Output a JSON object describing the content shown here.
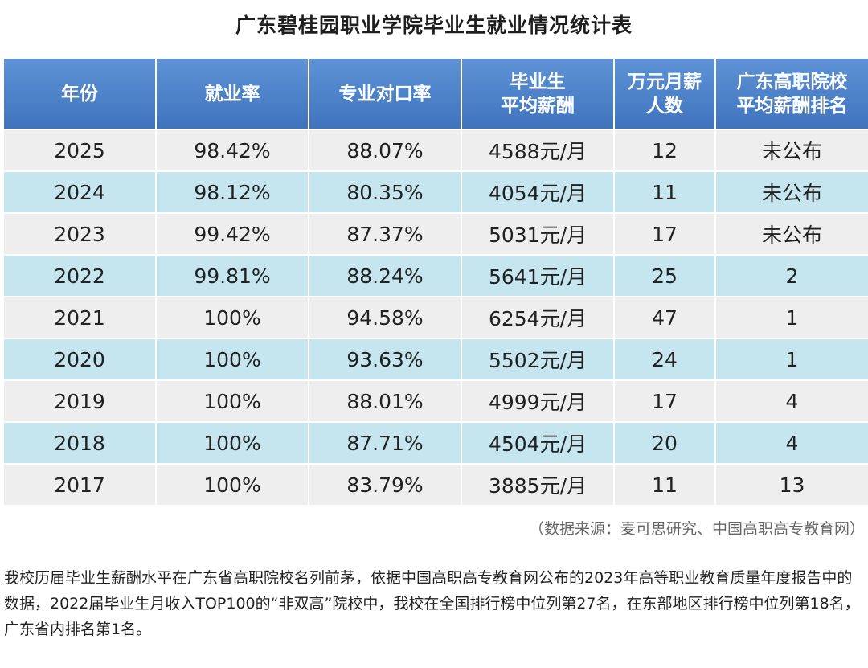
{
  "title": "广东碧桂园职业学院毕业生就业情况统计表",
  "table": {
    "headers": [
      [
        "年份"
      ],
      [
        "就业率"
      ],
      [
        "专业对口率"
      ],
      [
        "毕业生",
        "平均薪酬"
      ],
      [
        "万元月薪",
        "人数"
      ],
      [
        "广东高职院校",
        "平均薪酬排名"
      ]
    ],
    "rows": [
      [
        "2025",
        "98.42%",
        "88.07%",
        "4588元/月",
        "12",
        "未公布"
      ],
      [
        "2024",
        "98.12%",
        "80.35%",
        "4054元/月",
        "11",
        "未公布"
      ],
      [
        "2023",
        "99.42%",
        "87.37%",
        "5031元/月",
        "17",
        "未公布"
      ],
      [
        "2022",
        "99.81%",
        "88.24%",
        "5641元/月",
        "25",
        "2"
      ],
      [
        "2021",
        "100%",
        "94.58%",
        "6254元/月",
        "47",
        "1"
      ],
      [
        "2020",
        "100%",
        "93.63%",
        "5502元/月",
        "24",
        "1"
      ],
      [
        "2019",
        "100%",
        "88.01%",
        "4999元/月",
        "17",
        "4"
      ],
      [
        "2018",
        "100%",
        "87.71%",
        "4504元/月",
        "20",
        "4"
      ],
      [
        "2017",
        "100%",
        "83.79%",
        "3885元/月",
        "11",
        "13"
      ]
    ]
  },
  "source": "（数据来源：麦可思研究、中国高职高专教育网）",
  "paragraph": "我校历届毕业生薪酬水平在广东省高职院校名列前茅，依据中国高职高专教育网公布的2023年高等职业教育质量年度报告中的数据，2022届毕业生月收入TOP100的“非双高”院校中，我校在全国排行榜中位列第27名，在东部地区排行榜中位列第18名，广东省内排名第1名。",
  "colors": {
    "header_bg": "#4a7fc8",
    "row_gray": "#eeeeee",
    "row_blue": "#c5e6ef"
  }
}
